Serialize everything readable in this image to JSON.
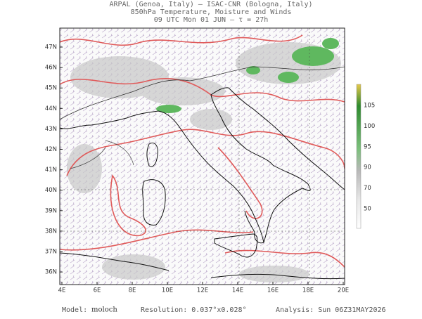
{
  "header": {
    "line1": "ARPAL (Genoa, Italy)  –  ISAC-CNR (Bologna, Italy)",
    "line2": "850hPa Temperature, Moisture and Winds",
    "line3": "09 UTC Mon 01 JUN  –  τ = 27h"
  },
  "map": {
    "lon_labels": [
      "4E",
      "6E",
      "8E",
      "10E",
      "12E",
      "14E",
      "16E",
      "18E",
      "20E"
    ],
    "lat_labels": [
      "47N",
      "46N",
      "45N",
      "44N",
      "43N",
      "42N",
      "41N",
      "40N",
      "39N",
      "38N",
      "37N",
      "36N"
    ]
  },
  "colorbar": {
    "labels": [
      "105",
      "100",
      "95",
      "90",
      "70",
      "50"
    ]
  },
  "footer": {
    "model_label": "Model:",
    "model": "moloch",
    "resolution": "Resolution: 0.037°x0.028°",
    "analysis": "Analysis: Sun 06Z31MAY2026"
  }
}
